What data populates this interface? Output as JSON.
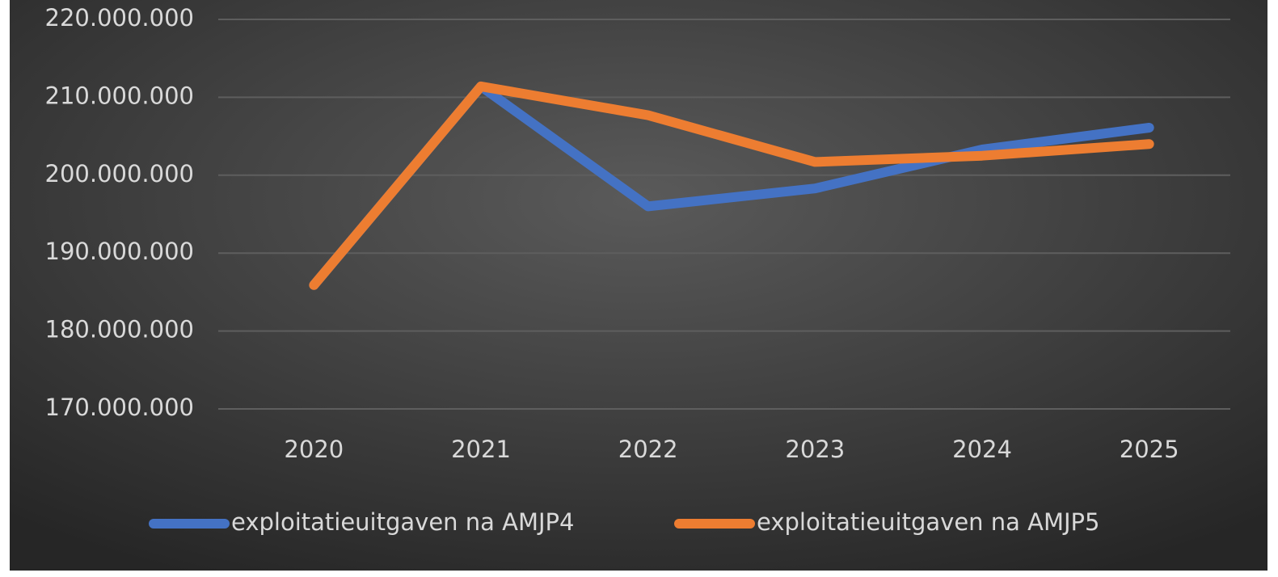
{
  "chart_data": {
    "type": "line",
    "categories": [
      "2020",
      "2021",
      "2022",
      "2023",
      "2024",
      "2025"
    ],
    "series": [
      {
        "name": "exploitatieuitgaven na AMJP4",
        "color": "#4472c4",
        "values": [
          185900000,
          211400000,
          196000000,
          198300000,
          203300000,
          206100000
        ]
      },
      {
        "name": "exploitatieuitgaven na AMJP5",
        "color": "#ed7d31",
        "values": [
          185900000,
          211400000,
          207700000,
          201700000,
          202500000,
          204000000
        ]
      }
    ],
    "ylim": [
      170000000,
      220000000
    ],
    "yticks": [
      {
        "value": 170000000,
        "label": "170.000.000"
      },
      {
        "value": 180000000,
        "label": "180.000.000"
      },
      {
        "value": 190000000,
        "label": "190.000.000"
      },
      {
        "value": 200000000,
        "label": "200.000.000"
      },
      {
        "value": 210000000,
        "label": "210.000.000"
      },
      {
        "value": 220000000,
        "label": "220.000.000"
      }
    ],
    "grid": true,
    "legend": "bottom"
  }
}
